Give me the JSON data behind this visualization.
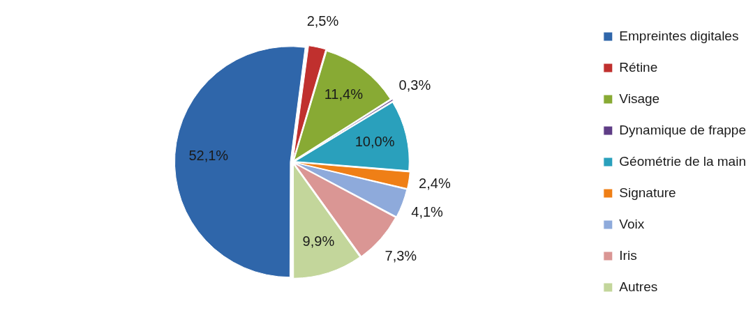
{
  "chart_data": {
    "type": "pie",
    "categories": [
      "Empreintes digitales",
      "Rétine",
      "Visage",
      "Dynamique de frappe",
      "Géométrie de la main",
      "Signature",
      "Voix",
      "Iris",
      "Autres"
    ],
    "values": [
      52.1,
      2.5,
      11.4,
      0.3,
      10.0,
      2.4,
      4.1,
      7.3,
      9.9
    ],
    "colors": [
      "#2f66aa",
      "#c0302e",
      "#88aa34",
      "#5f3d86",
      "#2aa0bc",
      "#ef7f16",
      "#8eaadb",
      "#da9694",
      "#c3d69b"
    ],
    "value_labels": [
      "52,1%",
      "2,5%",
      "11,4%",
      "0,3%",
      "10,0%",
      "2,4%",
      "4,1%",
      "7,3%",
      "9,9%"
    ],
    "legend": "right"
  }
}
